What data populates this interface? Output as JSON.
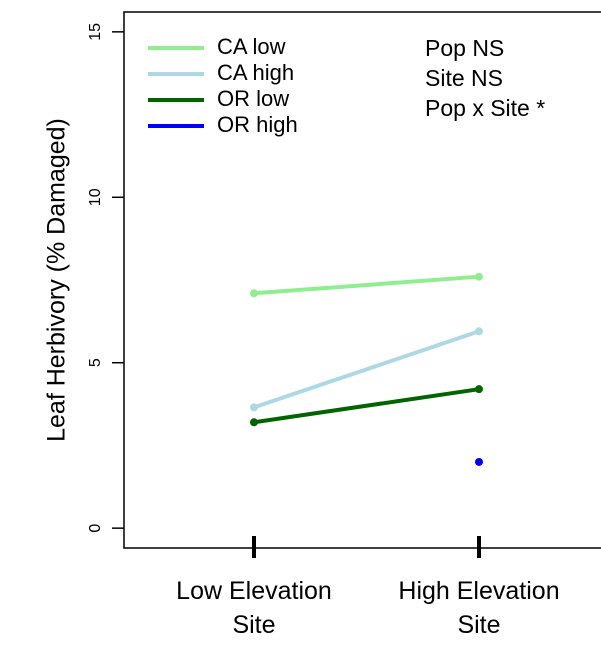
{
  "chart_data": {
    "type": "line",
    "y_label": "Leaf Herbivory (% Damaged)",
    "categories": [
      "Low Elevation Site",
      "High Elevation Site"
    ],
    "series": [
      {
        "name": "CA low",
        "color": "#90ee90",
        "values": [
          7.1,
          7.6
        ]
      },
      {
        "name": "CA high",
        "color": "#add8e6",
        "values": [
          3.65,
          5.95
        ]
      },
      {
        "name": "OR low",
        "color": "#006400",
        "values": [
          3.2,
          4.2
        ]
      },
      {
        "name": "OR high",
        "color": "#0000ff",
        "values": [
          null,
          2.0
        ]
      }
    ],
    "annotations": [
      "Pop NS",
      "Site NS",
      "Pop x Site *"
    ],
    "ylim": [
      -0.6,
      15.6
    ],
    "yticks": [
      0,
      5,
      10,
      15
    ],
    "legend": "top-left"
  }
}
